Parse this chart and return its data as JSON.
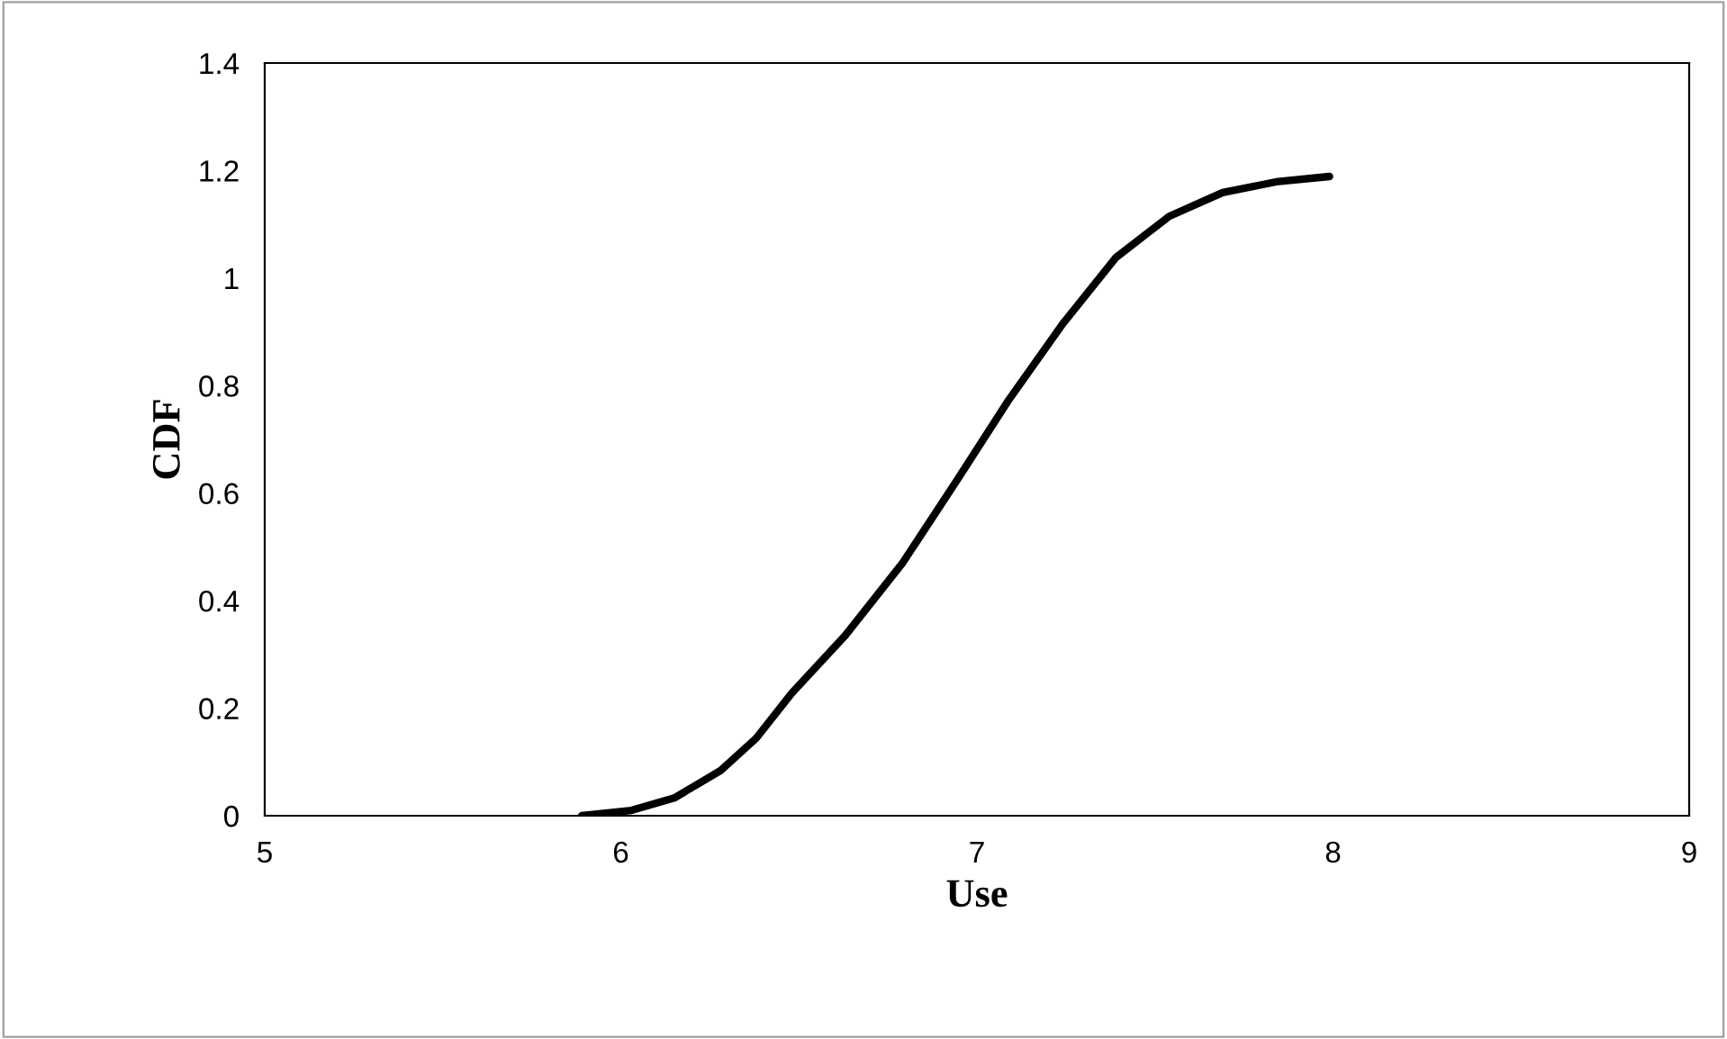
{
  "chart_data": {
    "type": "line",
    "xlabel": "Use",
    "ylabel": "CDF",
    "series": [
      {
        "color": "#000000",
        "x": [
          5.89,
          6.03,
          6.15,
          6.28,
          6.38,
          6.48,
          6.63,
          6.79,
          6.94,
          7.09,
          7.24,
          7.39,
          7.54,
          7.69,
          7.84,
          7.99
        ],
        "values": [
          0,
          0.01,
          0.033,
          0.084,
          0.144,
          0.228,
          0.335,
          0.469,
          0.62,
          0.774,
          0.914,
          1.038,
          1.115,
          1.159,
          1.179,
          1.189
        ]
      }
    ],
    "xlim": [
      5,
      9
    ],
    "xticks": [
      5,
      6,
      7,
      8,
      9
    ],
    "ylim": [
      0,
      1.4
    ],
    "yticks": [
      0,
      0.2,
      0.4,
      0.6,
      0.8,
      1,
      1.2,
      1.4
    ],
    "marker": "none",
    "line_style": "solid"
  }
}
